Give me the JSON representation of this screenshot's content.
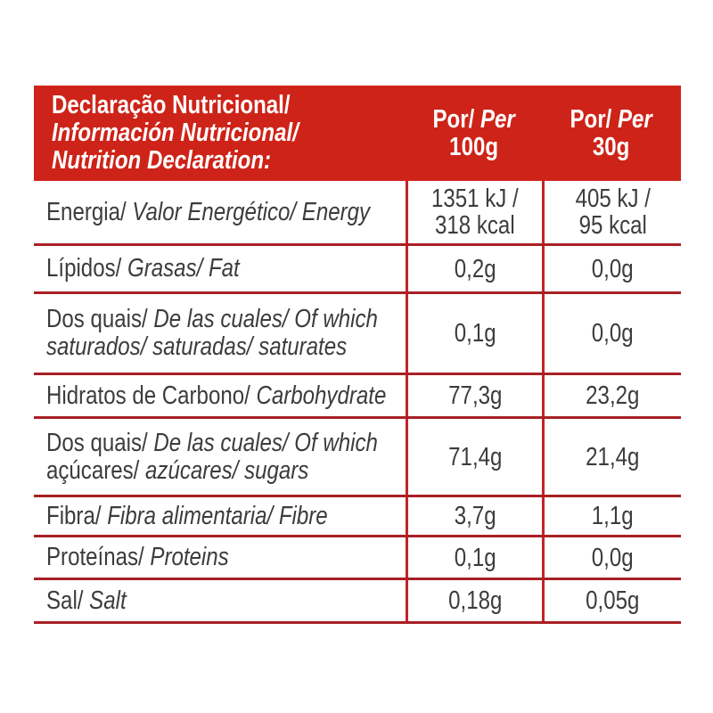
{
  "colors": {
    "header_bg": "#CE2318",
    "header_text": "#FFFFFF",
    "horizontal_line": "#A82025",
    "vertical_line": "#C2242A",
    "body_text": "#3C3C3B",
    "background": "#FFFFFF"
  },
  "header": {
    "title_lines": [
      {
        "text": "Declaração Nutricional/",
        "italic": false
      },
      {
        "text": "Información Nutricional/",
        "italic": true
      },
      {
        "text": "Nutrition Declaration:",
        "italic": true
      }
    ],
    "col_per_100g": {
      "line1": [
        {
          "text": "Por/ ",
          "italic": false
        },
        {
          "text": "Per",
          "italic": true
        }
      ],
      "line2": "100g"
    },
    "col_per_30g": {
      "line1": [
        {
          "text": "Por/ ",
          "italic": false
        },
        {
          "text": "Per",
          "italic": true
        }
      ],
      "line2": "30g"
    }
  },
  "rows": [
    {
      "label_lines": [
        [
          {
            "text": "Energia/",
            "italic": false
          },
          {
            "text": " Valor Energético/ Energy",
            "italic": true
          }
        ]
      ],
      "per100_lines": [
        "1351 kJ /",
        "318 kcal"
      ],
      "per30_lines": [
        "405 kJ /",
        "95 kcal"
      ]
    },
    {
      "label_lines": [
        [
          {
            "text": "Lípidos/",
            "italic": false
          },
          {
            "text": " Grasas/ Fat",
            "italic": true
          }
        ]
      ],
      "per100_lines": [
        "0,2g"
      ],
      "per30_lines": [
        "0,0g"
      ]
    },
    {
      "label_lines": [
        [
          {
            "text": "Dos quais/",
            "italic": false
          },
          {
            "text": " De las cuales/ Of which",
            "italic": true
          }
        ],
        [
          {
            "text": "saturados/ saturadas/ saturates",
            "italic": true
          }
        ]
      ],
      "per100_lines": [
        "0,1g"
      ],
      "per30_lines": [
        "0,0g"
      ]
    },
    {
      "label_lines": [
        [
          {
            "text": "Hidratos de Carbono/",
            "italic": false
          },
          {
            "text": " Carbohydrate",
            "italic": true
          }
        ]
      ],
      "per100_lines": [
        "77,3g"
      ],
      "per30_lines": [
        "23,2g"
      ]
    },
    {
      "label_lines": [
        [
          {
            "text": "Dos quais/",
            "italic": false
          },
          {
            "text": " De las cuales/ Of which",
            "italic": true
          }
        ],
        [
          {
            "text": "açúcares/",
            "italic": false
          },
          {
            "text": " azúcares/ sugars",
            "italic": true
          }
        ]
      ],
      "per100_lines": [
        "71,4g"
      ],
      "per30_lines": [
        "21,4g"
      ]
    },
    {
      "label_lines": [
        [
          {
            "text": "Fibra/",
            "italic": false
          },
          {
            "text": " Fibra alimentaria/ Fibre",
            "italic": true
          }
        ]
      ],
      "per100_lines": [
        "3,7g"
      ],
      "per30_lines": [
        "1,1g"
      ]
    },
    {
      "label_lines": [
        [
          {
            "text": "Proteínas/",
            "italic": false
          },
          {
            "text": " Proteins",
            "italic": true
          }
        ]
      ],
      "per100_lines": [
        "0,1g"
      ],
      "per30_lines": [
        "0,0g"
      ]
    },
    {
      "label_lines": [
        [
          {
            "text": "Sal/",
            "italic": false
          },
          {
            "text": " Salt",
            "italic": true
          }
        ]
      ],
      "per100_lines": [
        "0,18g"
      ],
      "per30_lines": [
        "0,05g"
      ]
    }
  ]
}
